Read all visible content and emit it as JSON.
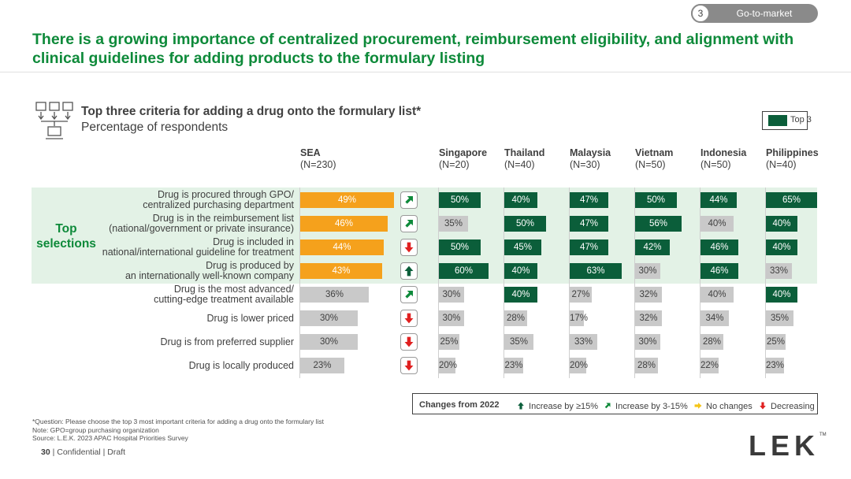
{
  "header": {
    "section_number": "3",
    "section_label": "Go-to-market",
    "headline": "There is a growing importance of centralized procurement, reimbursement eligibility, and alignment with clinical guidelines for adding products to the formulary listing"
  },
  "chart_header": {
    "title": "Top three criteria for adding a drug onto the formulary list*",
    "subtitle": "Percentage of respondents",
    "legend_label": "Top 3",
    "top_selections_label": "Top selections"
  },
  "chart_data": {
    "type": "bar",
    "title": "Top three criteria for adding a drug onto the formulary list*",
    "subtitle": "Percentage of respondents",
    "categories": [
      "Drug is procured through GPO/ centralized purchasing department",
      "Drug is in the reimbursement list (national/government or private insurance)",
      "Drug is included in national/international guideline for treatment",
      "Drug is produced by an internationally well-known company",
      "Drug is the most advanced/ cutting-edge treatment available",
      "Drug is lower priced",
      "Drug is from preferred supplier",
      "Drug is locally produced"
    ],
    "category_lines": [
      [
        "Drug is procured through GPO/",
        "centralized purchasing department"
      ],
      [
        "Drug is in the reimbursement list",
        "(national/government or private insurance)"
      ],
      [
        "Drug is included in",
        "national/international guideline for treatment"
      ],
      [
        "Drug is produced by",
        "an internationally well-known company"
      ],
      [
        "Drug is the most advanced/",
        "cutting-edge treatment available"
      ],
      [
        "Drug is lower priced"
      ],
      [
        "Drug is from preferred supplier"
      ],
      [
        "Drug is locally produced"
      ]
    ],
    "series": [
      {
        "name": "SEA",
        "n": "(N=230)",
        "values": [
          49,
          46,
          44,
          43,
          36,
          30,
          30,
          23
        ],
        "top3": [
          true,
          true,
          true,
          true,
          false,
          false,
          false,
          false
        ]
      },
      {
        "name": "Singapore",
        "n": "(N=20)",
        "values": [
          50,
          35,
          50,
          60,
          30,
          30,
          25,
          20
        ],
        "top3": [
          true,
          false,
          true,
          true,
          false,
          false,
          false,
          false
        ]
      },
      {
        "name": "Thailand",
        "n": "(N=40)",
        "values": [
          40,
          50,
          45,
          40,
          40,
          28,
          35,
          23
        ],
        "top3": [
          true,
          true,
          true,
          true,
          true,
          false,
          false,
          false
        ]
      },
      {
        "name": "Malaysia",
        "n": "(N=30)",
        "values": [
          47,
          47,
          47,
          63,
          27,
          17,
          33,
          20
        ],
        "top3": [
          true,
          true,
          true,
          true,
          false,
          false,
          false,
          false
        ]
      },
      {
        "name": "Vietnam",
        "n": "(N=50)",
        "values": [
          50,
          56,
          42,
          30,
          32,
          32,
          30,
          28
        ],
        "top3": [
          true,
          true,
          true,
          false,
          false,
          false,
          false,
          false
        ]
      },
      {
        "name": "Indonesia",
        "n": "(N=50)",
        "values": [
          44,
          40,
          46,
          46,
          40,
          34,
          28,
          22
        ],
        "top3": [
          true,
          false,
          true,
          true,
          false,
          false,
          false,
          false
        ]
      },
      {
        "name": "Philippines",
        "n": "(N=40)",
        "values": [
          65,
          40,
          40,
          33,
          40,
          35,
          25,
          23
        ],
        "top3": [
          true,
          true,
          true,
          false,
          true,
          false,
          false,
          false
        ]
      }
    ],
    "changes_from_2022": [
      "increase_3_15",
      "increase_3_15",
      "decreasing",
      "increase_15_plus",
      "increase_3_15",
      "decreasing",
      "decreasing",
      "decreasing"
    ],
    "unit": "%"
  },
  "changes_legend": {
    "label": "Changes from 2022",
    "items": [
      {
        "key": "increase_15_plus",
        "text": "Increase by ≥15%",
        "icon": "arrow-up-icon",
        "color": "#0b5e3a"
      },
      {
        "key": "increase_3_15",
        "text": "Increase by 3-15%",
        "icon": "arrow-diagonal-up-icon",
        "color": "#0e8a3a"
      },
      {
        "key": "no_change",
        "text": "No changes",
        "icon": "arrow-right-icon",
        "color": "#f5c518"
      },
      {
        "key": "decreasing",
        "text": "Decreasing",
        "icon": "arrow-down-icon",
        "color": "#e02020"
      }
    ]
  },
  "footnotes": {
    "question": "*Question: Please choose the top 3 most important criteria for adding a drug onto the formulary list",
    "note": "Note: GPO=group purchasing organization",
    "source": "Source: L.E.K. 2023 APAC Hospital Priorities Survey"
  },
  "footer": {
    "page_number": "30",
    "confidential": "| Confidential | Draft",
    "logo": "LEK",
    "logo_tm": "TM"
  },
  "colors": {
    "brand_green": "#0e8a3a",
    "top3_green": "#0b5e3a",
    "sea_orange": "#f5a11c",
    "neutral_grey": "#c9c9c9",
    "band": "#e3f2e6"
  }
}
